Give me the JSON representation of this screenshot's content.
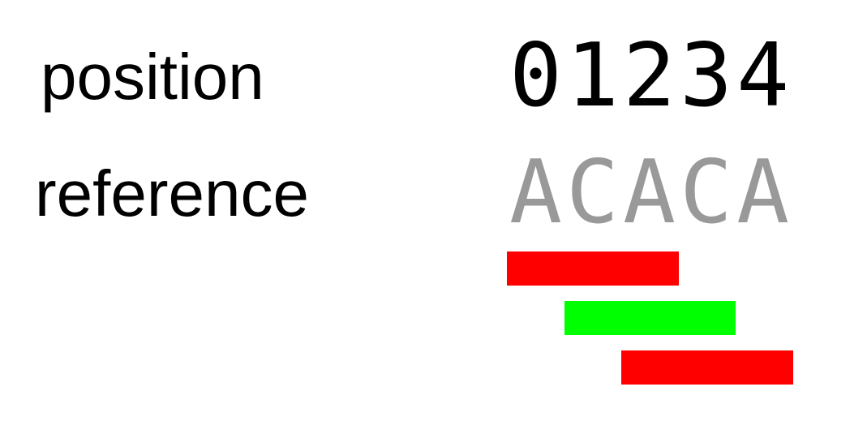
{
  "labels": {
    "position": "position",
    "reference": "reference"
  },
  "positions": "01234",
  "reference_sequence": "ACACA",
  "colors": {
    "label_text": "#000000",
    "position_text": "#000000",
    "reference_text": "#999999",
    "mismatch": "#ff0000",
    "match": "#00ff00"
  },
  "reads": [
    {
      "start": 0,
      "end": 2,
      "status": "mismatch",
      "color": "#ff0000"
    },
    {
      "start": 1,
      "end": 3,
      "status": "match",
      "color": "#00ff00"
    },
    {
      "start": 2,
      "end": 4,
      "status": "mismatch",
      "color": "#ff0000"
    }
  ]
}
